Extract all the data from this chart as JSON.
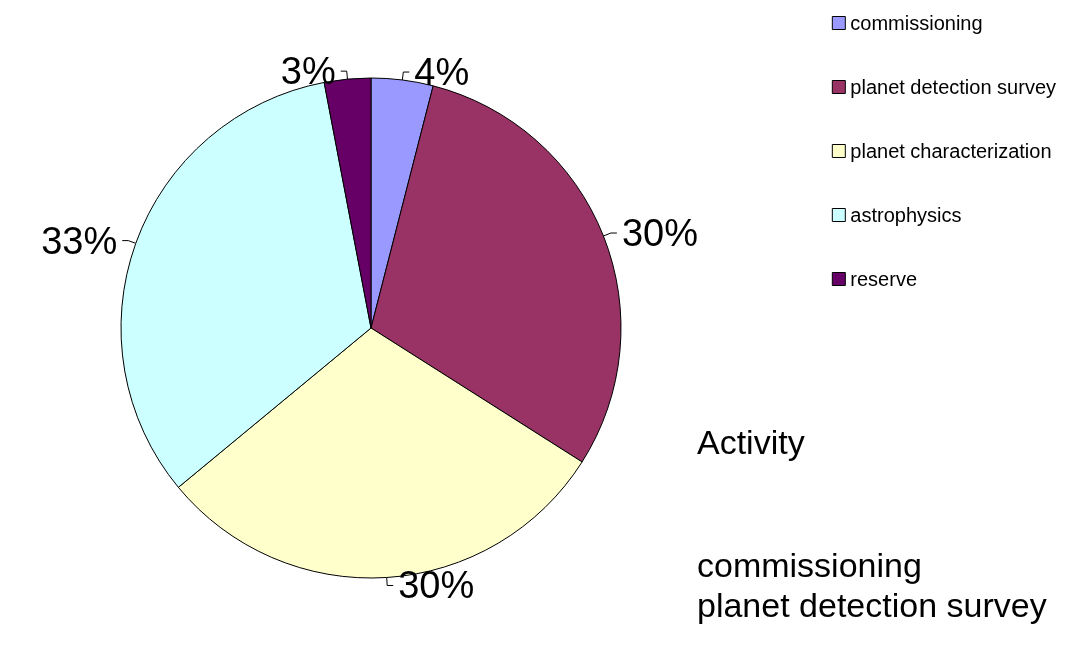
{
  "chart_data": {
    "type": "pie",
    "categories": [
      "commissioning",
      "planet detection survey",
      "planet characterization",
      "astrophysics",
      "reserve"
    ],
    "values": [
      4,
      30,
      30,
      33,
      3
    ],
    "colors": [
      "#9999ff",
      "#993366",
      "#ffffcc",
      "#ccffff",
      "#660066"
    ],
    "value_labels": [
      "4%",
      "30%",
      "30%",
      "33%",
      "3%"
    ],
    "legend": "top right",
    "annotations": [
      "Activity",
      "commissioning",
      "planet detection survey"
    ]
  }
}
